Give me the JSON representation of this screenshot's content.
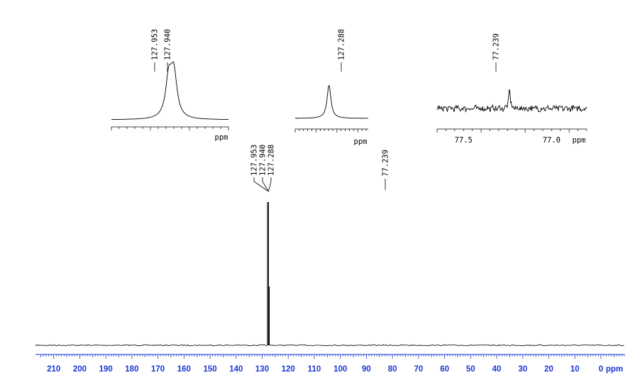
{
  "chart_data": {
    "type": "line",
    "title": "",
    "main": {
      "xlabel": "ppm",
      "xlim": [
        217,
        -9
      ],
      "x_reversed": true,
      "tick_labels": [
        "210",
        "200",
        "190",
        "180",
        "170",
        "160",
        "150",
        "140",
        "130",
        "120",
        "110",
        "100",
        "90",
        "80",
        "70",
        "60",
        "50",
        "40",
        "30",
        "20",
        "10",
        "0"
      ],
      "peaks": [
        {
          "ppm": 127.953,
          "rel_height": 1.0
        },
        {
          "ppm": 127.94,
          "rel_height": 1.0
        },
        {
          "ppm": 127.288,
          "rel_height": 0.41
        }
      ],
      "peak_labels": [
        "127.953",
        "127.940",
        "127.288"
      ],
      "solvent_label": "77.239",
      "solvent_ppm": 77.239,
      "solvent_rel_height": 0.0
    },
    "insets": [
      {
        "xlabel": "ppm",
        "xlim": [
          128.1,
          127.8
        ],
        "peaks": [
          {
            "ppm": 127.953,
            "rel_height": 0.86
          },
          {
            "ppm": 127.94,
            "rel_height": 0.97
          }
        ],
        "labels": [
          "127.953",
          "127.940"
        ],
        "tick_labels": []
      },
      {
        "xlabel": "ppm",
        "xlim": [
          127.45,
          127.1
        ],
        "peaks": [
          {
            "ppm": 127.288,
            "rel_height": 0.95
          }
        ],
        "labels": [
          "127.288"
        ],
        "tick_labels": []
      },
      {
        "xlabel": "ppm",
        "xlim": [
          77.65,
          76.8
        ],
        "peaks": [
          {
            "ppm": 77.239,
            "rel_height": 0.85
          }
        ],
        "labels": [
          "77.239"
        ],
        "tick_labels": [
          "77.5",
          "77.0"
        ],
        "tick_values": [
          77.5,
          77.0
        ],
        "noisy": true
      }
    ],
    "colors": {
      "trace": "#000000",
      "main_axis_labels": "#1a35d6"
    }
  }
}
